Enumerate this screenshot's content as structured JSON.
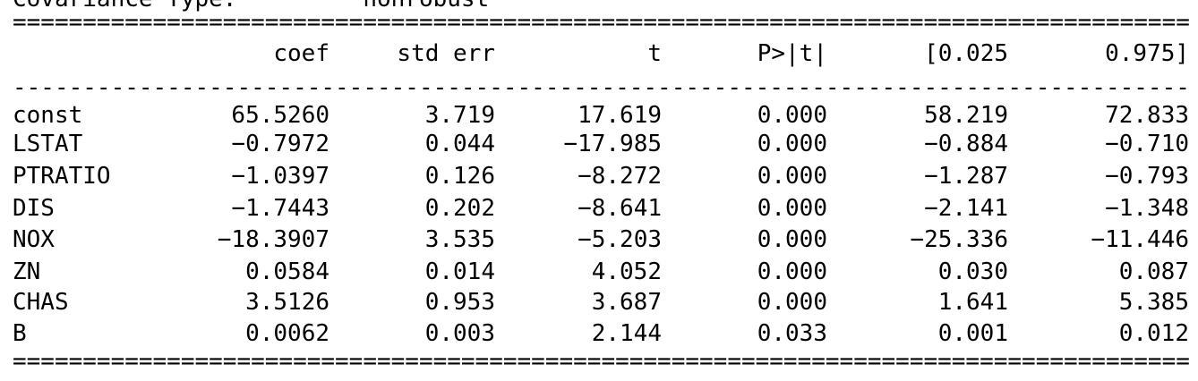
{
  "header_partial": {
    "label": "Covariance Type:",
    "value": "nonrobust"
  },
  "rules": {
    "double": "======================================================================================",
    "single": "--------------------------------------------------------------------------------------"
  },
  "table": {
    "columns": [
      "",
      "coef",
      "std err",
      "t",
      "P>|t|",
      "[0.025",
      "0.975]"
    ],
    "rows": [
      {
        "name": "const",
        "coef": "65.5260",
        "std_err": "3.719",
        "t": "17.619",
        "p": "0.000",
        "ci_low": "58.219",
        "ci_high": "72.833"
      },
      {
        "name": "LSTAT",
        "coef": "−0.7972",
        "std_err": "0.044",
        "t": "−17.985",
        "p": "0.000",
        "ci_low": "−0.884",
        "ci_high": "−0.710"
      },
      {
        "name": "PTRATIO",
        "coef": "−1.0397",
        "std_err": "0.126",
        "t": "−8.272",
        "p": "0.000",
        "ci_low": "−1.287",
        "ci_high": "−0.793"
      },
      {
        "name": "DIS",
        "coef": "−1.7443",
        "std_err": "0.202",
        "t": "−8.641",
        "p": "0.000",
        "ci_low": "−2.141",
        "ci_high": "−1.348"
      },
      {
        "name": "NOX",
        "coef": "−18.3907",
        "std_err": "3.535",
        "t": "−5.203",
        "p": "0.000",
        "ci_low": "−25.336",
        "ci_high": "−11.446"
      },
      {
        "name": "ZN",
        "coef": "0.0584",
        "std_err": "0.014",
        "t": "4.052",
        "p": "0.000",
        "ci_low": "0.030",
        "ci_high": "0.087"
      },
      {
        "name": "CHAS",
        "coef": "3.5126",
        "std_err": "0.953",
        "t": "3.687",
        "p": "0.000",
        "ci_low": "1.641",
        "ci_high": "5.385"
      },
      {
        "name": "B",
        "coef": "0.0062",
        "std_err": "0.003",
        "t": "2.144",
        "p": "0.033",
        "ci_low": "0.001",
        "ci_high": "0.012"
      }
    ]
  }
}
